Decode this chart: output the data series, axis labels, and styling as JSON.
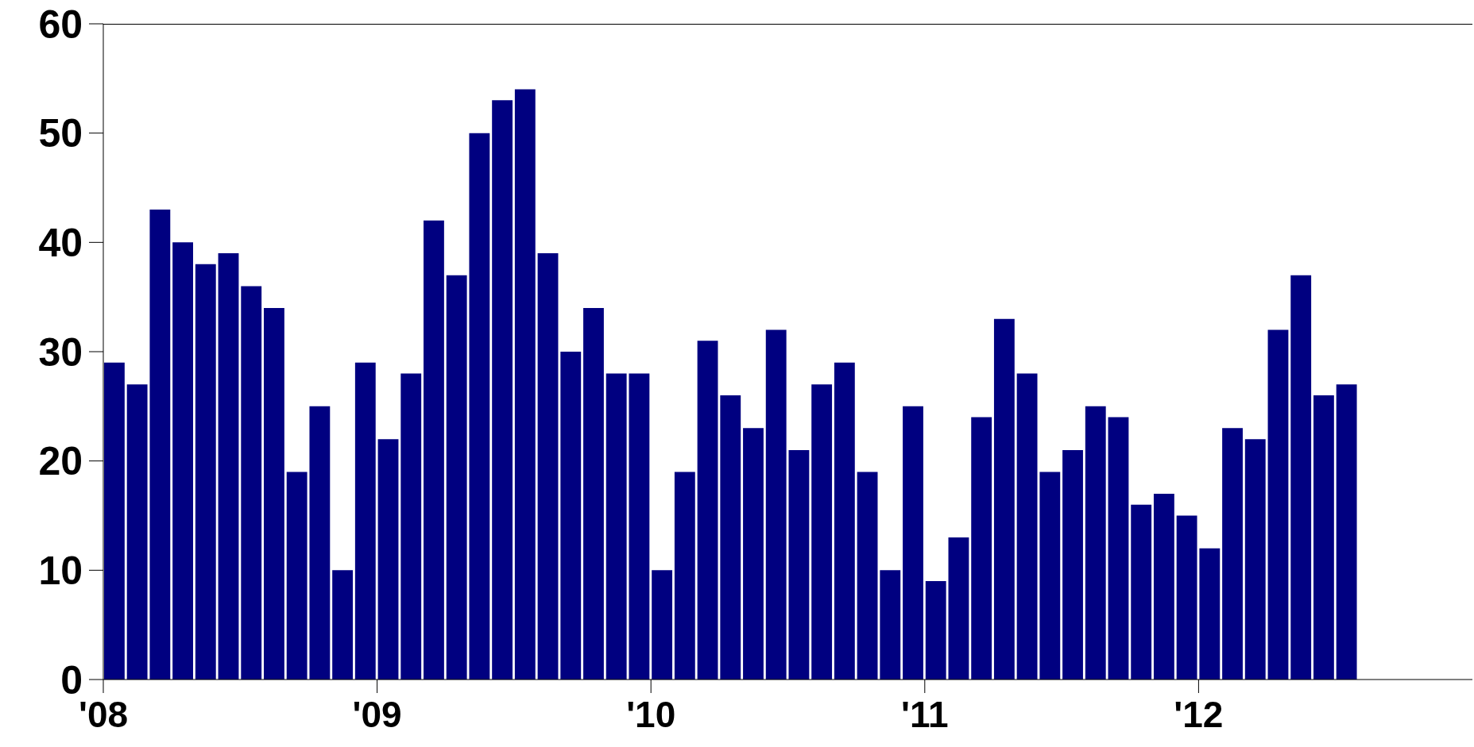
{
  "chart_data": {
    "type": "bar",
    "color": "#000080",
    "x": [
      "2008-01",
      "2008-02",
      "2008-03",
      "2008-04",
      "2008-05",
      "2008-06",
      "2008-07",
      "2008-08",
      "2008-09",
      "2008-10",
      "2008-11",
      "2008-12",
      "2009-01",
      "2009-02",
      "2009-03",
      "2009-04",
      "2009-05",
      "2009-06",
      "2009-07",
      "2009-08",
      "2009-09",
      "2009-10",
      "2009-11",
      "2009-12",
      "2010-01",
      "2010-02",
      "2010-03",
      "2010-04",
      "2010-05",
      "2010-06",
      "2010-07",
      "2010-08",
      "2010-09",
      "2010-10",
      "2010-11",
      "2010-12",
      "2011-01",
      "2011-02",
      "2011-03",
      "2011-04",
      "2011-05",
      "2011-06",
      "2011-07",
      "2011-08",
      "2011-09",
      "2011-10",
      "2011-11",
      "2011-12",
      "2012-01",
      "2012-02",
      "2012-03",
      "2012-04",
      "2012-05",
      "2012-06",
      "2012-07"
    ],
    "values": [
      29,
      27,
      43,
      40,
      38,
      39,
      36,
      34,
      19,
      25,
      10,
      29,
      22,
      28,
      42,
      37,
      50,
      53,
      54,
      39,
      30,
      34,
      28,
      28,
      10,
      19,
      31,
      26,
      23,
      32,
      21,
      27,
      29,
      19,
      10,
      25,
      9,
      13,
      24,
      33,
      28,
      19,
      21,
      25,
      24,
      16,
      17,
      15,
      12,
      23,
      22,
      32,
      37,
      26,
      27
    ],
    "xlim": [
      "2008-01",
      "2013-01"
    ],
    "xticks": [
      {
        "value": "2008-01",
        "label": "'08"
      },
      {
        "value": "2009-01",
        "label": "'09"
      },
      {
        "value": "2010-01",
        "label": "'10"
      },
      {
        "value": "2011-01",
        "label": "'11"
      },
      {
        "value": "2012-01",
        "label": "'12"
      }
    ],
    "ylim": [
      0,
      60
    ],
    "yticks": [
      0,
      10,
      20,
      30,
      40,
      50,
      60
    ],
    "grid": false,
    "legend": false
  }
}
